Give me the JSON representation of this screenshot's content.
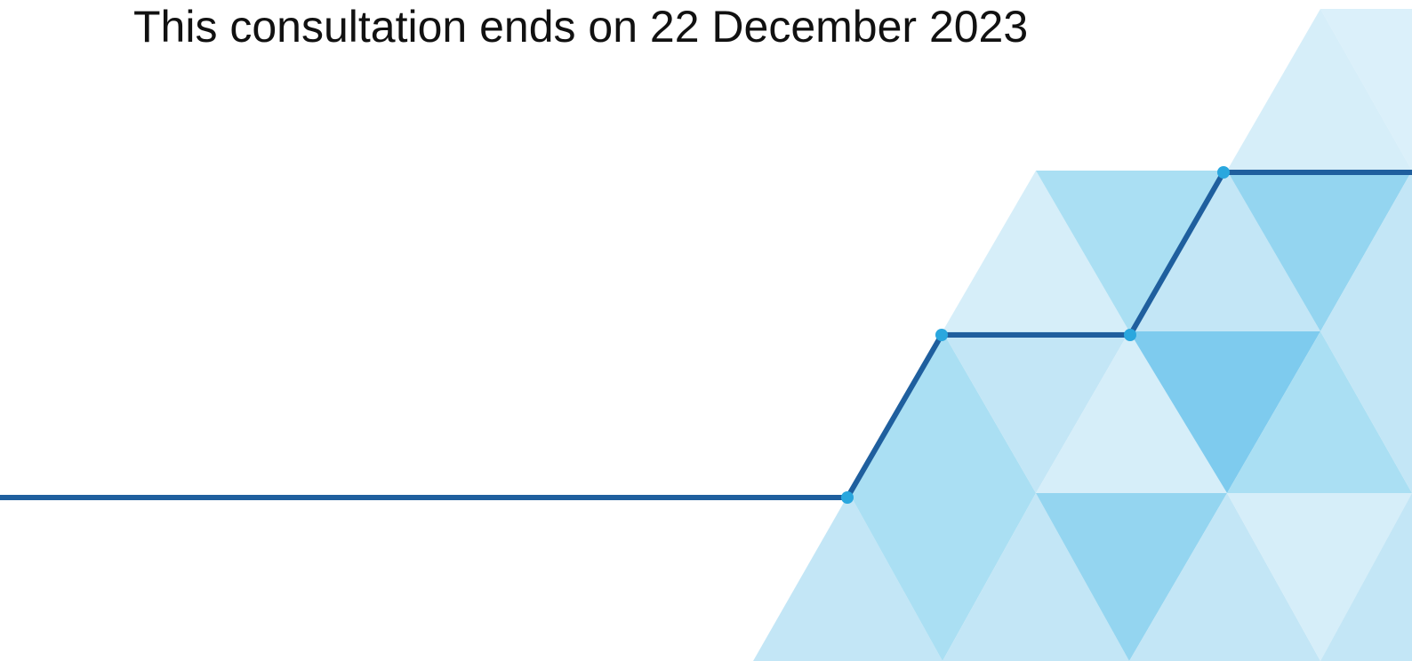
{
  "document": {
    "deadline_text": "This consultation ends on 22 December 2023"
  },
  "decoration": {
    "name": "triangle-mosaic-with-rising-line",
    "colors": {
      "line": "#1f5f9e",
      "node": "#2aa7de",
      "tri_lightest": "#d6eef9",
      "tri_light": "#c3e6f6",
      "tri_mid": "#aadff3",
      "tri_strong": "#94d5f0",
      "tri_strongest": "#7ecbee"
    }
  }
}
